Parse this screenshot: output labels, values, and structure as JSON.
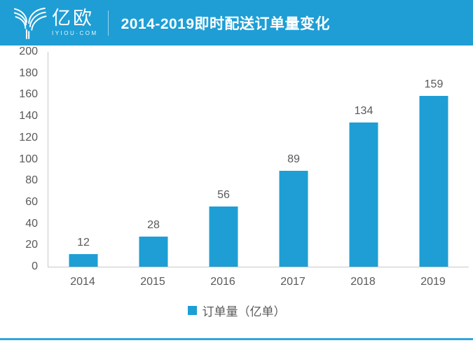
{
  "header": {
    "logo_text": "亿欧",
    "logo_subtext": "IYIOU·COM",
    "title": "2014-2019即时配送订单量变化"
  },
  "chart_data": {
    "type": "bar",
    "title": "2014-2019即时配送订单量变化",
    "categories": [
      "2014",
      "2015",
      "2016",
      "2017",
      "2018",
      "2019"
    ],
    "series": [
      {
        "name": "订单量（亿单）",
        "values": [
          12,
          28,
          56,
          89,
          134,
          159
        ]
      }
    ],
    "ylim": [
      0,
      200
    ],
    "ytick_interval": 20,
    "yticks": [
      0,
      20,
      40,
      60,
      80,
      100,
      120,
      140,
      160,
      180,
      200
    ],
    "grid": false,
    "data_labels": true,
    "legend_position": "bottom",
    "bar_color": "#1E9ED5"
  },
  "legend": {
    "label": "订单量（亿单）"
  },
  "colors": {
    "brand_blue": "#1E9ED5",
    "bar": "#1E9ED5",
    "bottom_rule": "#2EA6DC",
    "axis_line": "#C8C8C8",
    "label_text": "#595959"
  }
}
